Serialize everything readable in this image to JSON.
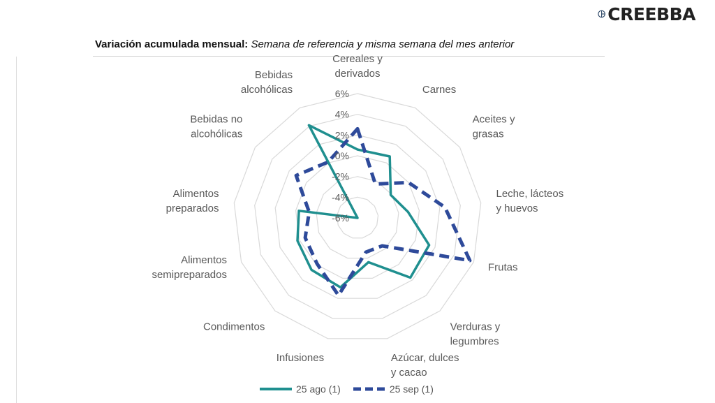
{
  "brand": {
    "name": "CREEBBA",
    "logo_icon": "creebba-logo-icon",
    "color": "#1f3b5c"
  },
  "title": {
    "bold": "Variación acumulada mensual:",
    "italic": "Semana de referencia y misma semana del mes anterior"
  },
  "chart_data": {
    "type": "radar",
    "categories": [
      "Cereales y derivados",
      "Carnes",
      "Aceites y grasas",
      "Leche, lácteos y huevos",
      "Frutas",
      "Verduras y legumbres",
      "Azúcar, dulces y cacao",
      "Infusiones",
      "Condimentos",
      "Alimentos semipreparados",
      "Alimentos preparados",
      "Bebidas no alcohólicas",
      "Bebidas alcohólicas"
    ],
    "category_label_lines": [
      [
        "Cereales y",
        "derivados"
      ],
      [
        "Carnes"
      ],
      [
        "Aceites y",
        "grasas"
      ],
      [
        "Leche, lácteos",
        "y huevos"
      ],
      [
        "Frutas"
      ],
      [
        "Verduras y",
        "legumbres"
      ],
      [
        "Azúcar, dulces",
        "y cacao"
      ],
      [
        "Infusiones"
      ],
      [
        "Condimentos"
      ],
      [
        "Alimentos",
        "semipreparados"
      ],
      [
        "Alimentos",
        "preparados"
      ],
      [
        "Bebidas no",
        "alcohólicas"
      ],
      [
        "Bebidas",
        "alcohólicas"
      ]
    ],
    "rlim": [
      -6,
      6
    ],
    "ticks": [
      -6,
      -4,
      -2,
      0,
      2,
      4,
      6
    ],
    "tick_labels": [
      "-6%",
      "-4%",
      "-2%",
      "0%",
      "2%",
      "4%",
      "6%"
    ],
    "series": [
      {
        "name": "25 ago (1)",
        "color": "#1f8f8f",
        "dash": false,
        "values": [
          0.6,
          0.7,
          -2.1,
          -1.1,
          1.4,
          1.7,
          -1.6,
          0.9,
          0.7,
          0.2,
          -0.3,
          -6.0,
          4.1
        ]
      },
      {
        "name": "25 sep (1)",
        "color": "#2e4a9a",
        "dash": true,
        "values": [
          2.6,
          -2.3,
          0.0,
          2.5,
          5.6,
          -2.4,
          -2.6,
          1.7,
          -0.1,
          -0.6,
          -1.3,
          1.2,
          0.1
        ]
      }
    ],
    "grid": true,
    "legend": "bottom"
  }
}
